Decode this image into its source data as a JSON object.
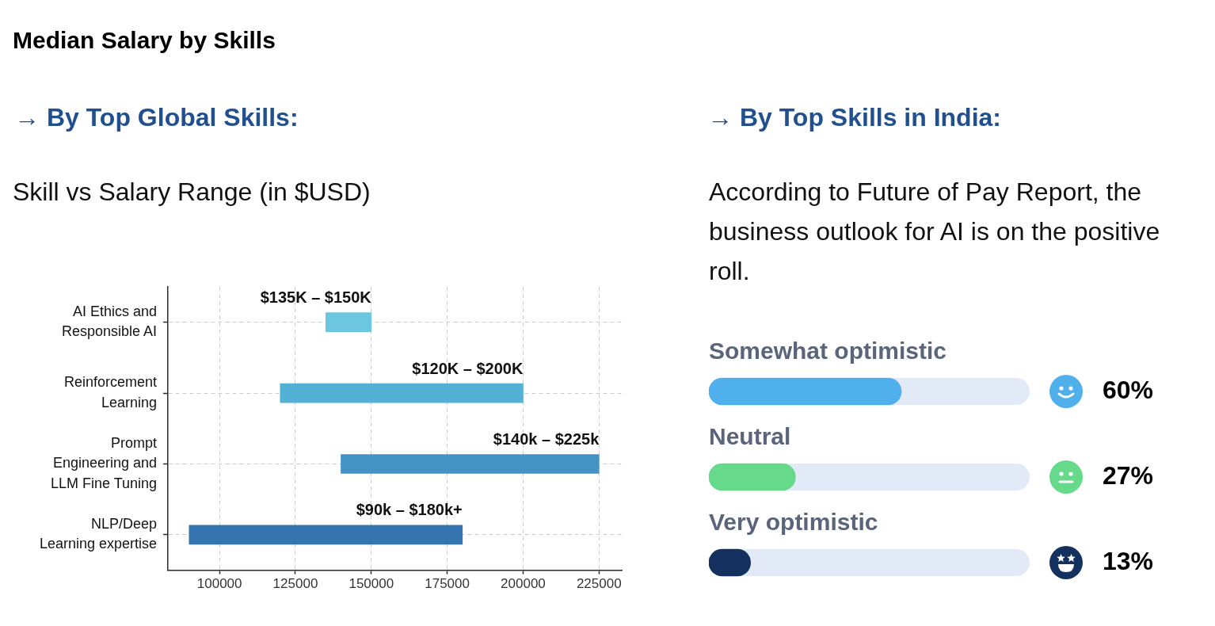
{
  "chart_data": [
    {
      "type": "bar",
      "orientation": "horizontal",
      "title": "Median Salary by Skills",
      "subtitle": "→ By Top Global Skills:",
      "annotations": [
        "Skill vs Salary Range (in $USD)",
        {
          "text": "$135K – $150K",
          "x": 150000,
          "y": "AI Ethics and Responsible AI"
        },
        {
          "text": "$120K – $200K",
          "x": 200000,
          "y": "Reinforcement Learning"
        },
        {
          "text": "$140k – $225k",
          "x": 225000,
          "y": "Prompt Engineering and LLM Fine Tuning"
        },
        {
          "text": "$90k – $180k+",
          "x": 180000,
          "y": "NLP/Deep Learning expertise"
        }
      ],
      "categories": [
        "AI Ethics and Responsible AI",
        "Reinforcement Learning",
        "Prompt Engineering and LLM Fine Tuning",
        "NLP/Deep Learning expertise"
      ],
      "base": [
        135000,
        120000,
        140000,
        90000
      ],
      "values": [
        15000,
        80000,
        85000,
        90000
      ],
      "colors": [
        "#6cc6e0",
        "#52b1d5",
        "#4394c4",
        "#3474b0"
      ],
      "xlim": [
        83000,
        232500
      ],
      "xticks": [
        100000,
        125000,
        150000,
        175000,
        200000,
        225000
      ],
      "grid": true
    },
    {
      "type": "bar",
      "orientation": "horizontal",
      "title": "→ By Top Skills in India:",
      "subtitle": "According to Future of Pay Report, the business outlook for AI is on the positive roll.",
      "categories": [
        "Somewhat optimistic",
        "Neutral",
        "Very optimistic"
      ],
      "values": [
        60,
        27,
        13
      ],
      "colors": [
        "#4fb0ec",
        "#66d98a",
        "#13305f"
      ],
      "value_labels": [
        "60%",
        "27%",
        "13%"
      ],
      "xlim": [
        0,
        100
      ],
      "tick_labels": "y"
    }
  ]
}
